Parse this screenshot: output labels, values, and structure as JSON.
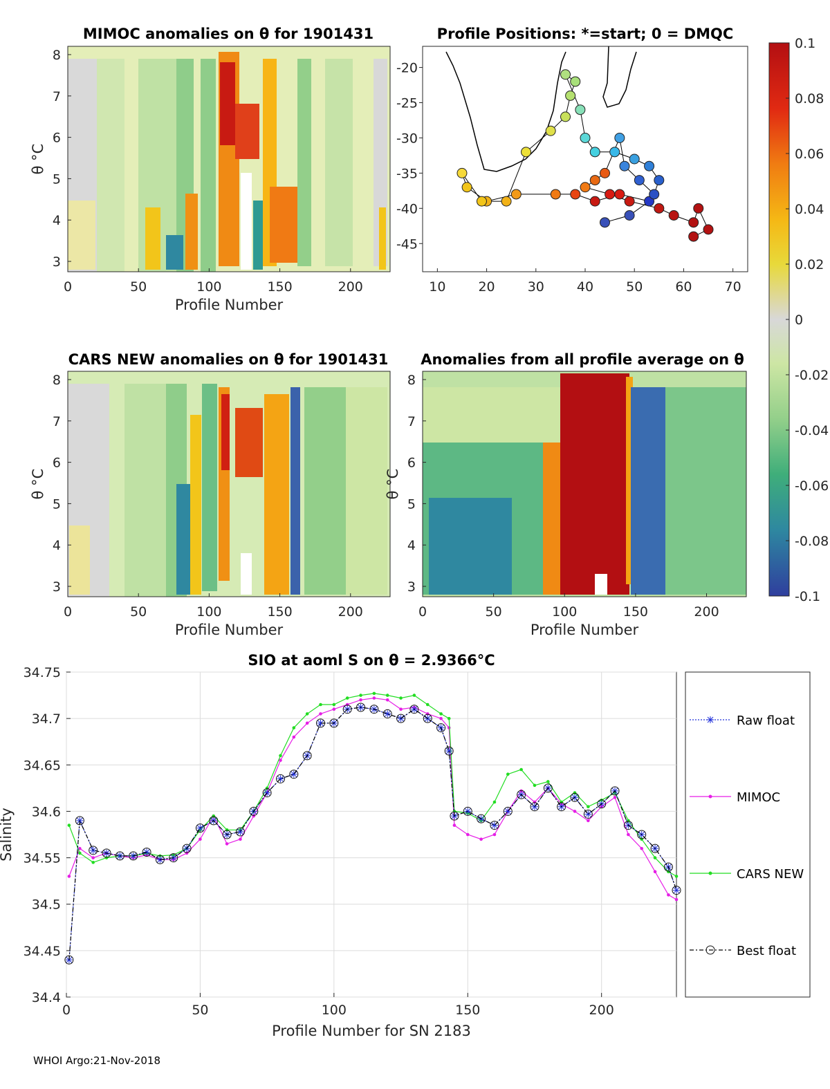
{
  "colors": {
    "raw_float": "#1f2fd9",
    "mimoc": "#e61ee6",
    "cars_new": "#22dd22",
    "best_float": "#000000",
    "grid": "#dcdcdc",
    "land": "#000000"
  },
  "colorbar": {
    "ticks": [
      "0.1",
      "0.08",
      "0.06",
      "0.04",
      "0.02",
      "0",
      "-0.02",
      "-0.04",
      "-0.06",
      "-0.08",
      "-0.1"
    ],
    "min": -0.1,
    "max": 0.1
  },
  "panels": {
    "mimoc": {
      "title": "MIMOC anomalies on θ  for 1901431",
      "xlabel": "Profile Number",
      "ylabel": "θ °C",
      "xticks": [
        "0",
        "50",
        "100",
        "150",
        "200"
      ],
      "yticks": [
        "8",
        "7",
        "6",
        "5",
        "4",
        "3"
      ]
    },
    "positions": {
      "title": "Profile Positions: *=start; 0 = DMQC",
      "xticks": [
        "10",
        "20",
        "30",
        "40",
        "50",
        "60",
        "70"
      ],
      "yticks": [
        "-20",
        "-25",
        "-30",
        "-35",
        "-40",
        "-45"
      ]
    },
    "cars": {
      "title": "CARS NEW anomalies on θ for 1901431",
      "xlabel": "Profile Number",
      "ylabel": "θ °C",
      "xticks": [
        "0",
        "50",
        "100",
        "150",
        "200"
      ],
      "yticks": [
        "8",
        "7",
        "6",
        "5",
        "4",
        "3"
      ]
    },
    "average": {
      "title": "Anomalies from all profile average on θ",
      "xlabel": "Profile Number",
      "ylabel": "θ °C",
      "xticks": [
        "0",
        "50",
        "100",
        "150",
        "200"
      ],
      "yticks": [
        "8",
        "7",
        "6",
        "5",
        "4",
        "3"
      ]
    }
  },
  "chart_data": {
    "type": "line",
    "title": "SIO at aoml S on θ = 2.9366°C",
    "xlabel": "Profile Number for SN 2183",
    "ylabel": "Salinity",
    "xlim": [
      0,
      228
    ],
    "ylim": [
      34.4,
      34.75
    ],
    "xticks": [
      "0",
      "50",
      "100",
      "150",
      "200"
    ],
    "yticks": [
      "34.75",
      "34.7",
      "34.65",
      "34.6",
      "34.55",
      "34.5",
      "34.45",
      "34.4"
    ],
    "x": [
      1,
      5,
      10,
      15,
      20,
      25,
      30,
      35,
      40,
      45,
      50,
      55,
      60,
      65,
      70,
      75,
      80,
      85,
      90,
      95,
      100,
      105,
      110,
      115,
      120,
      125,
      130,
      135,
      140,
      143,
      145,
      150,
      155,
      160,
      165,
      170,
      175,
      180,
      185,
      190,
      195,
      200,
      205,
      210,
      215,
      220,
      225,
      228
    ],
    "series": [
      {
        "name": "Raw float",
        "values": [
          34.44,
          34.59,
          34.558,
          34.555,
          34.552,
          34.552,
          34.556,
          34.548,
          34.55,
          34.56,
          34.582,
          34.59,
          34.575,
          34.578,
          34.6,
          34.62,
          34.635,
          34.64,
          34.66,
          34.695,
          34.695,
          34.71,
          34.712,
          34.71,
          34.705,
          34.7,
          34.71,
          34.7,
          34.69,
          34.665,
          34.595,
          34.6,
          34.592,
          34.585,
          34.6,
          34.618,
          34.605,
          34.625,
          34.605,
          34.615,
          34.597,
          34.608,
          34.622,
          34.585,
          34.575,
          34.56,
          34.54,
          34.515
        ]
      },
      {
        "name": "MIMOC",
        "values": [
          34.53,
          34.56,
          34.55,
          34.555,
          34.552,
          34.55,
          34.553,
          34.548,
          34.548,
          34.555,
          34.57,
          34.595,
          34.565,
          34.57,
          34.595,
          34.62,
          34.655,
          34.68,
          34.695,
          34.705,
          34.71,
          34.715,
          34.72,
          34.722,
          34.72,
          34.71,
          34.712,
          34.705,
          34.7,
          34.69,
          34.585,
          34.575,
          34.57,
          34.575,
          34.6,
          34.622,
          34.61,
          34.625,
          34.608,
          34.6,
          34.59,
          34.605,
          34.615,
          34.575,
          34.56,
          34.535,
          34.51,
          34.505
        ]
      },
      {
        "name": "CARS NEW",
        "values": [
          34.585,
          34.555,
          34.545,
          34.55,
          34.552,
          34.552,
          34.555,
          34.552,
          34.553,
          34.56,
          34.58,
          34.595,
          34.58,
          34.58,
          34.6,
          34.625,
          34.66,
          34.69,
          34.705,
          34.715,
          34.715,
          34.722,
          34.725,
          34.727,
          34.725,
          34.722,
          34.725,
          34.715,
          34.705,
          34.7,
          34.6,
          34.598,
          34.59,
          34.61,
          34.64,
          34.645,
          34.628,
          34.632,
          34.61,
          34.62,
          34.605,
          34.612,
          34.62,
          34.59,
          34.57,
          34.55,
          34.535,
          34.53
        ]
      },
      {
        "name": "Best float",
        "values": [
          34.44,
          34.59,
          34.558,
          34.555,
          34.552,
          34.552,
          34.556,
          34.548,
          34.55,
          34.56,
          34.582,
          34.59,
          34.575,
          34.578,
          34.6,
          34.62,
          34.635,
          34.64,
          34.66,
          34.695,
          34.695,
          34.71,
          34.712,
          34.71,
          34.705,
          34.7,
          34.71,
          34.7,
          34.69,
          34.665,
          34.595,
          34.6,
          34.592,
          34.585,
          34.6,
          34.618,
          34.605,
          34.625,
          34.605,
          34.615,
          34.597,
          34.608,
          34.622,
          34.585,
          34.575,
          34.56,
          34.54,
          34.515
        ]
      }
    ]
  },
  "footer": "WHOI Argo:21-Nov-2018"
}
